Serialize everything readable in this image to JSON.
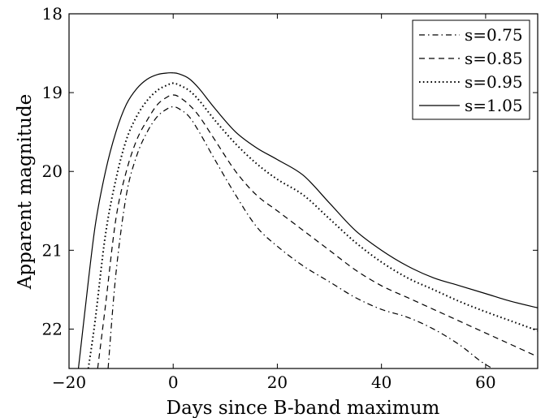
{
  "chart_data": {
    "type": "line",
    "title": "",
    "xlabel": "Days since B-band maximum",
    "ylabel": "Apparent magnitude",
    "xlim": [
      -20,
      70
    ],
    "ylim": [
      18,
      22.5
    ],
    "y_inverted": true,
    "xticks": [
      -20,
      0,
      20,
      40,
      60
    ],
    "yticks": [
      18,
      19,
      20,
      21,
      22
    ],
    "grid": false,
    "legend_position": "top-right",
    "series": [
      {
        "name": "s=0.75",
        "style": "dashdot",
        "color": "#000000",
        "x": [
          -12.5,
          -11,
          -9,
          -7,
          -5,
          -3,
          -1,
          0,
          1,
          3,
          5,
          8,
          12,
          16,
          20,
          25,
          30,
          35,
          40,
          45,
          50,
          55,
          60,
          65,
          70
        ],
        "y": [
          22.5,
          21.3,
          20.3,
          19.8,
          19.5,
          19.3,
          19.2,
          19.18,
          19.2,
          19.3,
          19.5,
          19.85,
          20.3,
          20.7,
          20.95,
          21.2,
          21.4,
          21.6,
          21.75,
          21.85,
          22.0,
          22.2,
          22.45,
          22.6,
          22.7
        ]
      },
      {
        "name": "s=0.85",
        "style": "dashed",
        "color": "#000000",
        "x": [
          -14.5,
          -13,
          -11,
          -9,
          -7,
          -5,
          -3,
          -1,
          0,
          1,
          3,
          5,
          8,
          12,
          16,
          20,
          25,
          30,
          35,
          40,
          45,
          50,
          55,
          60,
          65,
          70
        ],
        "y": [
          22.5,
          21.7,
          20.6,
          20.0,
          19.6,
          19.35,
          19.15,
          19.05,
          19.03,
          19.05,
          19.15,
          19.3,
          19.6,
          20.0,
          20.3,
          20.5,
          20.75,
          21.0,
          21.25,
          21.45,
          21.6,
          21.75,
          21.9,
          22.05,
          22.2,
          22.35
        ]
      },
      {
        "name": "s=0.95",
        "style": "dotted",
        "color": "#000000",
        "x": [
          -16.3,
          -15,
          -13,
          -11,
          -9,
          -7,
          -5,
          -3,
          -1,
          0,
          1,
          3,
          5,
          8,
          12,
          16,
          20,
          25,
          30,
          35,
          40,
          45,
          50,
          55,
          60,
          65,
          70
        ],
        "y": [
          22.5,
          21.9,
          20.8,
          20.1,
          19.6,
          19.3,
          19.1,
          18.97,
          18.9,
          18.88,
          18.9,
          18.97,
          19.1,
          19.35,
          19.65,
          19.9,
          20.1,
          20.3,
          20.6,
          20.9,
          21.15,
          21.35,
          21.5,
          21.65,
          21.78,
          21.9,
          22.02
        ]
      },
      {
        "name": "s=1.05",
        "style": "solid",
        "color": "#000000",
        "x": [
          -18.2,
          -17,
          -15,
          -13,
          -11,
          -9,
          -7,
          -5,
          -3,
          -1,
          0,
          1,
          3,
          5,
          8,
          12,
          16,
          20,
          25,
          30,
          35,
          40,
          45,
          50,
          55,
          60,
          65,
          70
        ],
        "y": [
          22.5,
          21.8,
          20.7,
          20.0,
          19.5,
          19.15,
          18.95,
          18.83,
          18.77,
          18.75,
          18.75,
          18.76,
          18.82,
          18.95,
          19.2,
          19.5,
          19.7,
          19.85,
          20.05,
          20.4,
          20.75,
          21.0,
          21.2,
          21.35,
          21.45,
          21.55,
          21.65,
          21.73
        ]
      }
    ]
  }
}
